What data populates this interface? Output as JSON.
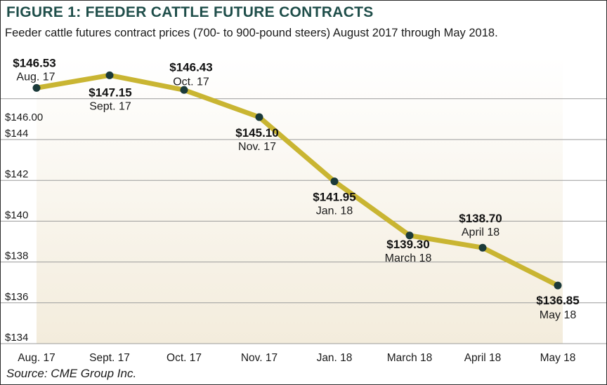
{
  "chart_data": {
    "type": "line",
    "title": "FIGURE 1: FEEDER CATTLE FUTURE CONTRACTS",
    "subtitle": "Feeder cattle futures contract prices (700- to 900-pound steers) August 2017 through May 2018.",
    "source": "Source: CME Group Inc.",
    "xlabel": "",
    "ylabel": "",
    "categories": [
      "Aug. 17",
      "Sept. 17",
      "Oct. 17",
      "Nov. 17",
      "Jan. 18",
      "March 18",
      "April 18",
      "May 18"
    ],
    "series": [
      {
        "values": [
          146.53,
          147.15,
          146.43,
          145.1,
          141.95,
          139.3,
          138.7,
          136.85
        ],
        "data_labels": [
          "$146.53",
          "$147.15",
          "$146.43",
          "$145.10",
          "$141.95",
          "$139.30",
          "$138.70",
          "$136.85"
        ],
        "date_labels": [
          "Aug. 17",
          "Sept. 17",
          "Oct. 17",
          "Nov. 17",
          "Jan. 18",
          "March 18",
          "April 18",
          "May 18"
        ]
      }
    ],
    "y_ticks": [
      134,
      136,
      138,
      140,
      142,
      144,
      146
    ],
    "y_tick_labels": [
      "$134",
      "$136",
      "$138",
      "$140",
      "$142",
      "$144",
      "$146.00"
    ],
    "ylim": [
      134,
      148
    ],
    "grid": true,
    "legend": "none",
    "colors": {
      "line": "#c9b532",
      "marker": "#1b3a3a",
      "title": "#1f4e4a",
      "grid": "#9a9a9a",
      "fill_top": "#ffffff",
      "fill_bottom": "#f3ecdc"
    }
  }
}
